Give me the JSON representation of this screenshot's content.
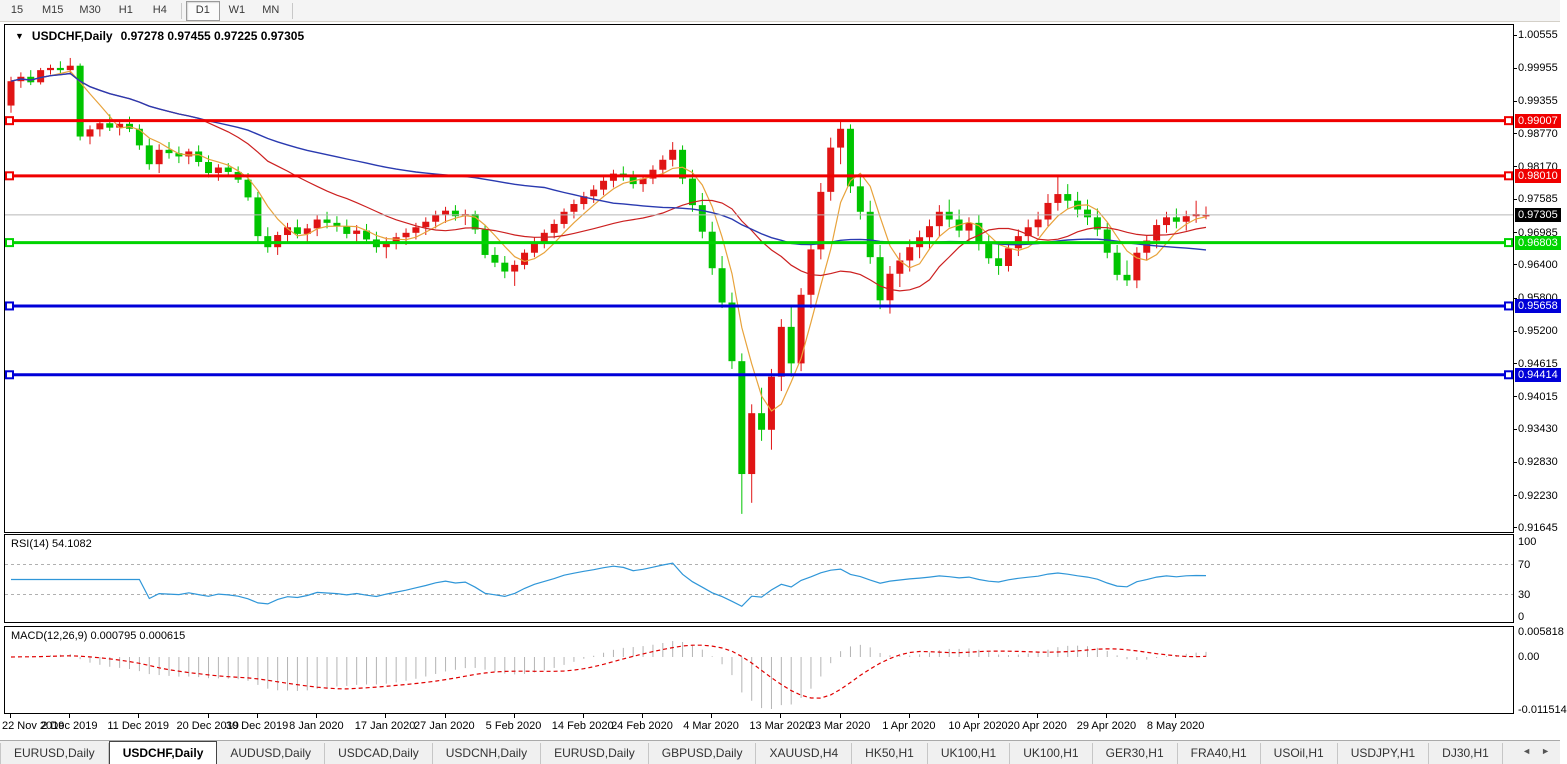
{
  "toolbar": {
    "buttons": [
      {
        "label": "15",
        "active": false,
        "sep_after": false
      },
      {
        "label": "M15",
        "active": false,
        "sep_after": false
      },
      {
        "label": "M30",
        "active": false,
        "sep_after": false
      },
      {
        "label": "H1",
        "active": false,
        "sep_after": false
      },
      {
        "label": "H4",
        "active": false,
        "sep_after": true
      },
      {
        "label": "D1",
        "active": true,
        "sep_after": false
      },
      {
        "label": "W1",
        "active": false,
        "sep_after": false
      },
      {
        "label": "MN",
        "active": false,
        "sep_after": true
      }
    ]
  },
  "header": {
    "symbol": "USDCHF,Daily",
    "ohlc_text": "0.97278 0.97455 0.97225 0.97305",
    "collapse_icon": "▼"
  },
  "rsi_panel": {
    "label": "RSI(14) 54.1082",
    "axis_ticks": [
      "100",
      "70",
      "30",
      "0"
    ]
  },
  "macd_panel": {
    "label": "MACD(12,26,9) 0.000795 0.000615",
    "axis_ticks": [
      "0.005818",
      "0.00",
      "-0.011514"
    ]
  },
  "colors": {
    "candle_up": "#e01414",
    "candle_down": "#00c400",
    "ma_fast": "#e8a33c",
    "ma_mid": "#cc2020",
    "ma_slow": "#2a3ab0",
    "hline_red": "#f00000",
    "hline_green": "#00d400",
    "hline_blue": "#0000d8",
    "current_line": "#b8b8b8",
    "current_badge": "#000000",
    "rsi_line": "#2f96d8",
    "rsi_level_dash": "#b0b0b0",
    "macd_hist": "#b4b4b4",
    "macd_signal": "#e00000"
  },
  "chart_data": {
    "type": "candlestick",
    "title": "USDCHF,Daily",
    "ohlc_current": {
      "open": 0.97278,
      "high": 0.97455,
      "low": 0.97225,
      "close": 0.97305
    },
    "ylim": [
      0.91645,
      1.00555
    ],
    "price_axis_ticks": [
      1.00555,
      0.99955,
      0.99355,
      0.9877,
      0.9817,
      0.97585,
      0.96985,
      0.964,
      0.958,
      0.952,
      0.94615,
      0.94015,
      0.9343,
      0.9283,
      0.9223,
      0.91645
    ],
    "hlines": [
      {
        "price": 0.99007,
        "label": "0.99007",
        "color_key": "hline_red"
      },
      {
        "price": 0.9801,
        "label": "0.98010",
        "color_key": "hline_red"
      },
      {
        "price": 0.96803,
        "label": "0.96803",
        "color_key": "hline_green"
      },
      {
        "price": 0.95658,
        "label": "0.95658",
        "color_key": "hline_blue"
      },
      {
        "price": 0.94414,
        "label": "0.94414",
        "color_key": "hline_blue"
      }
    ],
    "current_price": {
      "price": 0.97305,
      "label": "0.97305"
    },
    "date_ticks": [
      {
        "label": "22 Nov 2019",
        "index": 0
      },
      {
        "label": "2 Dec 2019",
        "index": 6
      },
      {
        "label": "11 Dec 2019",
        "index": 13
      },
      {
        "label": "20 Dec 2019",
        "index": 20
      },
      {
        "label": "30 Dec 2019",
        "index": 25
      },
      {
        "label": "8 Jan 2020",
        "index": 31
      },
      {
        "label": "17 Jan 2020",
        "index": 38
      },
      {
        "label": "27 Jan 2020",
        "index": 44
      },
      {
        "label": "5 Feb 2020",
        "index": 51
      },
      {
        "label": "14 Feb 2020",
        "index": 58
      },
      {
        "label": "24 Feb 2020",
        "index": 64
      },
      {
        "label": "4 Mar 2020",
        "index": 71
      },
      {
        "label": "13 Mar 2020",
        "index": 78
      },
      {
        "label": "23 Mar 2020",
        "index": 84
      },
      {
        "label": "1 Apr 2020",
        "index": 91
      },
      {
        "label": "10 Apr 2020",
        "index": 98
      },
      {
        "label": "20 Apr 2020",
        "index": 104
      },
      {
        "label": "29 Apr 2020",
        "index": 111
      },
      {
        "label": "8 May 2020",
        "index": 118
      }
    ],
    "ohlc": [
      [
        0.9928,
        0.998,
        0.9915,
        0.9972
      ],
      [
        0.9972,
        0.9988,
        0.996,
        0.998
      ],
      [
        0.998,
        0.9992,
        0.9965,
        0.997
      ],
      [
        0.997,
        0.9996,
        0.9966,
        0.9992
      ],
      [
        0.9992,
        1.0002,
        0.9984,
        0.9996
      ],
      [
        0.9996,
        1.0008,
        0.9986,
        0.9992
      ],
      [
        0.9992,
        1.0014,
        0.9984,
        1.0
      ],
      [
        1.0,
        1.0004,
        0.9865,
        0.9872
      ],
      [
        0.9872,
        0.9892,
        0.9858,
        0.9885
      ],
      [
        0.9885,
        0.9902,
        0.9872,
        0.9896
      ],
      [
        0.9896,
        0.9912,
        0.9882,
        0.9888
      ],
      [
        0.9888,
        0.99,
        0.9874,
        0.9895
      ],
      [
        0.9895,
        0.9908,
        0.988,
        0.9886
      ],
      [
        0.9886,
        0.9894,
        0.9848,
        0.9856
      ],
      [
        0.9856,
        0.9868,
        0.9812,
        0.9822
      ],
      [
        0.9822,
        0.9858,
        0.9806,
        0.9848
      ],
      [
        0.9848,
        0.9862,
        0.9832,
        0.9842
      ],
      [
        0.9842,
        0.9854,
        0.9824,
        0.9836
      ],
      [
        0.9836,
        0.985,
        0.9822,
        0.9845
      ],
      [
        0.9845,
        0.9856,
        0.9818,
        0.9826
      ],
      [
        0.9826,
        0.9838,
        0.9798,
        0.9806
      ],
      [
        0.9806,
        0.9822,
        0.9792,
        0.9816
      ],
      [
        0.9816,
        0.9824,
        0.98,
        0.9808
      ],
      [
        0.9808,
        0.9818,
        0.9788,
        0.9794
      ],
      [
        0.9794,
        0.9806,
        0.9756,
        0.9762
      ],
      [
        0.9762,
        0.9772,
        0.9682,
        0.9692
      ],
      [
        0.9692,
        0.9708,
        0.9662,
        0.9672
      ],
      [
        0.9672,
        0.97,
        0.9658,
        0.9694
      ],
      [
        0.9694,
        0.9716,
        0.968,
        0.9708
      ],
      [
        0.9708,
        0.9722,
        0.9688,
        0.9696
      ],
      [
        0.9696,
        0.9714,
        0.9682,
        0.9706
      ],
      [
        0.9706,
        0.973,
        0.9692,
        0.9722
      ],
      [
        0.9722,
        0.9736,
        0.9706,
        0.9716
      ],
      [
        0.9716,
        0.9728,
        0.97,
        0.971
      ],
      [
        0.971,
        0.9722,
        0.9688,
        0.9696
      ],
      [
        0.9696,
        0.9712,
        0.9682,
        0.9702
      ],
      [
        0.9702,
        0.9714,
        0.9678,
        0.9686
      ],
      [
        0.9686,
        0.97,
        0.9662,
        0.9672
      ],
      [
        0.9672,
        0.969,
        0.9652,
        0.9682
      ],
      [
        0.9682,
        0.9698,
        0.9668,
        0.969
      ],
      [
        0.969,
        0.9706,
        0.9676,
        0.9698
      ],
      [
        0.9698,
        0.9716,
        0.9686,
        0.9708
      ],
      [
        0.9708,
        0.9726,
        0.9694,
        0.9718
      ],
      [
        0.9718,
        0.9738,
        0.9706,
        0.973
      ],
      [
        0.973,
        0.9745,
        0.9716,
        0.9738
      ],
      [
        0.9738,
        0.9748,
        0.972,
        0.9728
      ],
      [
        0.9728,
        0.974,
        0.9712,
        0.9732
      ],
      [
        0.9732,
        0.9738,
        0.9696,
        0.9704
      ],
      [
        0.9704,
        0.9712,
        0.9652,
        0.9658
      ],
      [
        0.9658,
        0.9672,
        0.9636,
        0.9644
      ],
      [
        0.9644,
        0.9656,
        0.9616,
        0.9628
      ],
      [
        0.9628,
        0.9648,
        0.9602,
        0.964
      ],
      [
        0.964,
        0.9668,
        0.9632,
        0.9662
      ],
      [
        0.9662,
        0.969,
        0.9654,
        0.9682
      ],
      [
        0.9682,
        0.9704,
        0.967,
        0.9698
      ],
      [
        0.9698,
        0.9722,
        0.9688,
        0.9714
      ],
      [
        0.9714,
        0.9742,
        0.9706,
        0.9736
      ],
      [
        0.9736,
        0.9758,
        0.9724,
        0.975
      ],
      [
        0.975,
        0.9772,
        0.974,
        0.9764
      ],
      [
        0.9764,
        0.9784,
        0.9752,
        0.9776
      ],
      [
        0.9776,
        0.98,
        0.9766,
        0.9792
      ],
      [
        0.9792,
        0.9812,
        0.978,
        0.9805
      ],
      [
        0.9805,
        0.9818,
        0.9792,
        0.98
      ],
      [
        0.98,
        0.981,
        0.9778,
        0.9786
      ],
      [
        0.9786,
        0.9802,
        0.9772,
        0.9796
      ],
      [
        0.9796,
        0.982,
        0.9786,
        0.9812
      ],
      [
        0.9812,
        0.9838,
        0.98,
        0.983
      ],
      [
        0.983,
        0.9862,
        0.9818,
        0.9848
      ],
      [
        0.9848,
        0.9856,
        0.9786,
        0.9796
      ],
      [
        0.9796,
        0.9812,
        0.9736,
        0.9748
      ],
      [
        0.9748,
        0.977,
        0.9688,
        0.97
      ],
      [
        0.97,
        0.9718,
        0.9622,
        0.9634
      ],
      [
        0.9634,
        0.9656,
        0.9562,
        0.9572
      ],
      [
        0.9572,
        0.959,
        0.9452,
        0.9466
      ],
      [
        0.9466,
        0.948,
        0.919,
        0.9262
      ],
      [
        0.9262,
        0.9388,
        0.921,
        0.9372
      ],
      [
        0.9372,
        0.9418,
        0.9322,
        0.9342
      ],
      [
        0.9342,
        0.9452,
        0.9306,
        0.9438
      ],
      [
        0.9438,
        0.9542,
        0.9412,
        0.9528
      ],
      [
        0.9528,
        0.9566,
        0.9438,
        0.9462
      ],
      [
        0.9462,
        0.9598,
        0.9448,
        0.9586
      ],
      [
        0.9586,
        0.9682,
        0.9562,
        0.9668
      ],
      [
        0.9668,
        0.9788,
        0.965,
        0.9772
      ],
      [
        0.9772,
        0.987,
        0.9756,
        0.9852
      ],
      [
        0.9852,
        0.9902,
        0.9822,
        0.9886
      ],
      [
        0.9886,
        0.9894,
        0.977,
        0.9782
      ],
      [
        0.9782,
        0.98,
        0.9722,
        0.9736
      ],
      [
        0.9736,
        0.9756,
        0.9642,
        0.9654
      ],
      [
        0.9654,
        0.9676,
        0.956,
        0.9576
      ],
      [
        0.9576,
        0.9638,
        0.9552,
        0.9624
      ],
      [
        0.9624,
        0.9662,
        0.96,
        0.9648
      ],
      [
        0.9648,
        0.9686,
        0.9628,
        0.9672
      ],
      [
        0.9672,
        0.9702,
        0.9652,
        0.969
      ],
      [
        0.969,
        0.9722,
        0.9668,
        0.971
      ],
      [
        0.971,
        0.9748,
        0.9692,
        0.9736
      ],
      [
        0.9736,
        0.9758,
        0.9708,
        0.9722
      ],
      [
        0.9722,
        0.974,
        0.969,
        0.9702
      ],
      [
        0.9702,
        0.9726,
        0.9682,
        0.9716
      ],
      [
        0.9716,
        0.973,
        0.9666,
        0.9678
      ],
      [
        0.9678,
        0.9694,
        0.9642,
        0.9652
      ],
      [
        0.9652,
        0.9676,
        0.9622,
        0.9638
      ],
      [
        0.9638,
        0.9682,
        0.9628,
        0.967
      ],
      [
        0.967,
        0.9704,
        0.9656,
        0.9692
      ],
      [
        0.9692,
        0.9722,
        0.9678,
        0.9708
      ],
      [
        0.9708,
        0.9736,
        0.9692,
        0.9722
      ],
      [
        0.9722,
        0.9768,
        0.971,
        0.9752
      ],
      [
        0.9752,
        0.9802,
        0.9738,
        0.9768
      ],
      [
        0.9768,
        0.9786,
        0.9742,
        0.9756
      ],
      [
        0.9756,
        0.9772,
        0.9726,
        0.974
      ],
      [
        0.974,
        0.9758,
        0.9712,
        0.9726
      ],
      [
        0.9726,
        0.9742,
        0.9692,
        0.9704
      ],
      [
        0.9704,
        0.9716,
        0.9652,
        0.9662
      ],
      [
        0.9662,
        0.9676,
        0.9612,
        0.9622
      ],
      [
        0.9622,
        0.9648,
        0.9602,
        0.9612
      ],
      [
        0.9612,
        0.9672,
        0.9598,
        0.9662
      ],
      [
        0.9662,
        0.9694,
        0.9648,
        0.9684
      ],
      [
        0.9684,
        0.9722,
        0.967,
        0.9712
      ],
      [
        0.9712,
        0.9736,
        0.9698,
        0.9726
      ],
      [
        0.9726,
        0.9742,
        0.9706,
        0.9718
      ],
      [
        0.9718,
        0.9738,
        0.9702,
        0.9728
      ],
      [
        0.9728,
        0.9756,
        0.9716,
        0.9732
      ],
      [
        0.97278,
        0.97455,
        0.97225,
        0.97305
      ]
    ],
    "moving_averages": [
      {
        "name": "fast",
        "period": 5,
        "color_key": "ma_fast"
      },
      {
        "name": "mid",
        "period": 20,
        "color_key": "ma_mid"
      },
      {
        "name": "slow",
        "period": 55,
        "color_key": "ma_slow"
      }
    ],
    "indicators": [
      {
        "name": "RSI",
        "params": "14",
        "current_value": "54.1082",
        "levels": [
          70,
          30
        ],
        "range": [
          0,
          100
        ]
      },
      {
        "name": "MACD",
        "params": "12,26,9",
        "current_values": [
          "0.000795",
          "0.000615"
        ],
        "axis_max": "0.005818",
        "axis_zero": "0.00",
        "axis_min": "-0.011514"
      }
    ]
  },
  "tabs": {
    "items": [
      {
        "label": "EURUSD,Daily",
        "active": false
      },
      {
        "label": "USDCHF,Daily",
        "active": true
      },
      {
        "label": "AUDUSD,Daily",
        "active": false
      },
      {
        "label": "USDCAD,Daily",
        "active": false
      },
      {
        "label": "USDCNH,Daily",
        "active": false
      },
      {
        "label": "EURUSD,Daily",
        "active": false
      },
      {
        "label": "GBPUSD,Daily",
        "active": false
      },
      {
        "label": "XAUUSD,H4",
        "active": false
      },
      {
        "label": "HK50,H1",
        "active": false
      },
      {
        "label": "UK100,H1",
        "active": false
      },
      {
        "label": "UK100,H1",
        "active": false
      },
      {
        "label": "GER30,H1",
        "active": false
      },
      {
        "label": "FRA40,H1",
        "active": false
      },
      {
        "label": "USOil,H1",
        "active": false
      },
      {
        "label": "USDJPY,H1",
        "active": false
      },
      {
        "label": "DJ30,H1",
        "active": false
      }
    ],
    "nav_left": "◄",
    "nav_right": "►"
  }
}
